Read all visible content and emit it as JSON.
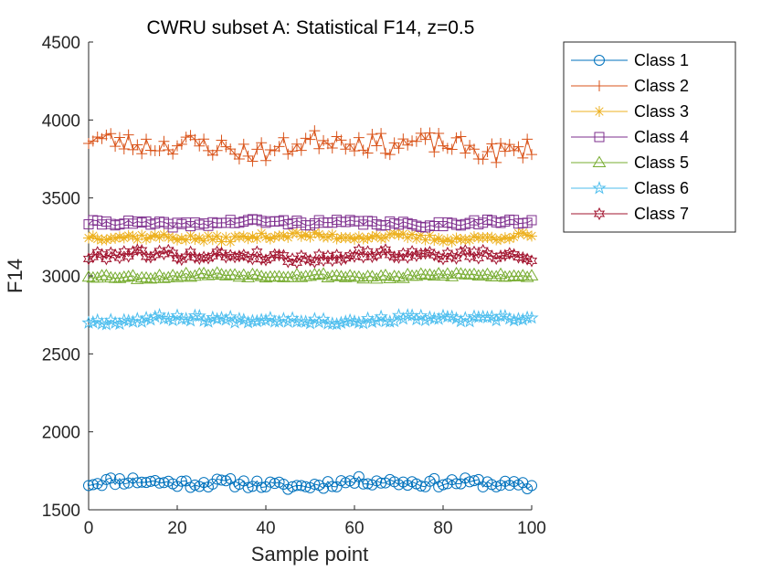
{
  "chart_data": {
    "type": "line",
    "title": "CWRU subset A: Statistical F14, z=0.5",
    "xlabel": "Sample point",
    "ylabel": "F14",
    "xlim": [
      0,
      100
    ],
    "ylim": [
      1500,
      4500
    ],
    "xticks": [
      0,
      20,
      40,
      60,
      80,
      100
    ],
    "yticks": [
      1500,
      2000,
      2500,
      3000,
      3500,
      4000,
      4500
    ],
    "grid": false,
    "legend_position": "outside top-right",
    "series": [
      {
        "name": "Class 1",
        "color": "#0072BD",
        "marker": "circle",
        "mean": 1670,
        "amp": 35,
        "seed": 11
      },
      {
        "name": "Class 2",
        "color": "#D95319",
        "marker": "plus",
        "mean": 3840,
        "amp": 85,
        "seed": 23
      },
      {
        "name": "Class 3",
        "color": "#EDB120",
        "marker": "asterisk",
        "mean": 3250,
        "amp": 25,
        "seed": 37
      },
      {
        "name": "Class 4",
        "color": "#7E2F8E",
        "marker": "square",
        "mean": 3340,
        "amp": 22,
        "seed": 41
      },
      {
        "name": "Class 5",
        "color": "#77AC30",
        "marker": "triangle",
        "mean": 3000,
        "amp": 18,
        "seed": 53
      },
      {
        "name": "Class 6",
        "color": "#4DBEEE",
        "marker": "pentagram",
        "mean": 2720,
        "amp": 25,
        "seed": 67
      },
      {
        "name": "Class 7",
        "color": "#A2142F",
        "marker": "hexagram",
        "mean": 3130,
        "amp": 35,
        "seed": 79
      }
    ]
  }
}
